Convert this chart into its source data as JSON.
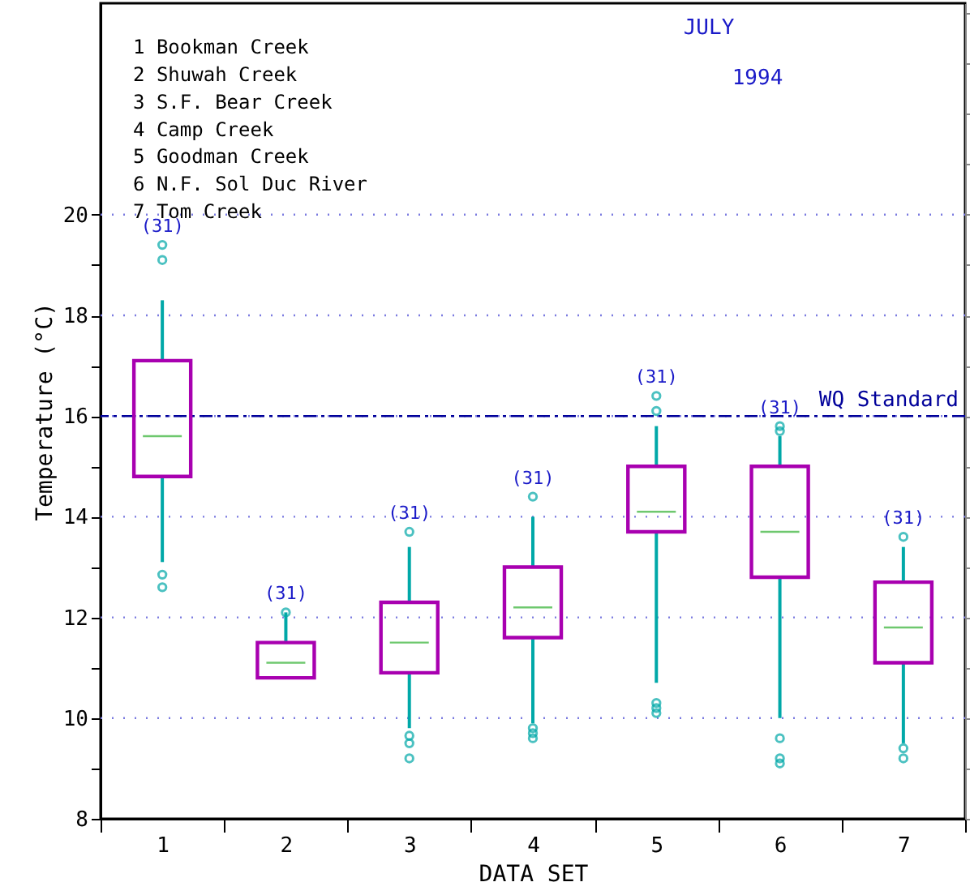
{
  "chart_data": {
    "type": "box",
    "title": "JULY",
    "subtitle": "1994",
    "xlabel": "DATA SET",
    "ylabel": "Temperature (°C)",
    "categories": [
      "1",
      "2",
      "3",
      "4",
      "5",
      "6",
      "7"
    ],
    "series": [
      {
        "boxes": [
          {
            "low": 13.1,
            "q1": 14.8,
            "median": 15.6,
            "q3": 17.1,
            "high": 18.3,
            "outliers": [
              12.85,
              12.6,
              19.1,
              19.4
            ]
          },
          {
            "low": 10.8,
            "q1": 10.8,
            "median": 11.1,
            "q3": 11.5,
            "high": 12.1,
            "outliers": [
              12.1
            ]
          },
          {
            "low": 9.8,
            "q1": 10.9,
            "median": 11.5,
            "q3": 12.3,
            "high": 13.4,
            "outliers": [
              13.7,
              9.65,
              9.5,
              9.2
            ]
          },
          {
            "low": 9.9,
            "q1": 11.6,
            "median": 12.2,
            "q3": 13.0,
            "high": 14.0,
            "outliers": [
              14.4,
              9.8,
              9.7,
              9.6
            ]
          },
          {
            "low": 10.7,
            "q1": 13.7,
            "median": 14.1,
            "q3": 15.0,
            "high": 15.8,
            "outliers": [
              16.1,
              16.4,
              10.3,
              10.2,
              10.1
            ]
          },
          {
            "low": 10.0,
            "q1": 12.8,
            "median": 13.7,
            "q3": 15.0,
            "high": 15.6,
            "outliers": [
              15.7,
              15.8,
              9.6,
              9.2,
              9.1
            ]
          },
          {
            "low": 9.5,
            "q1": 11.1,
            "median": 11.8,
            "q3": 12.7,
            "high": 13.4,
            "outliers": [
              13.6,
              9.4,
              9.2
            ]
          }
        ]
      }
    ],
    "ylim": [
      8,
      24.2
    ],
    "yticks": [
      8,
      {
        "value": 9,
        "label": null
      },
      10,
      {
        "value": 11,
        "label": null
      },
      12,
      {
        "value": 13,
        "label": null
      },
      14,
      {
        "value": 15,
        "label": null
      },
      16,
      {
        "value": 17,
        "label": null
      },
      18,
      {
        "value": 19,
        "label": null
      },
      20
    ],
    "grid": "y",
    "ref_lines": [
      {
        "axis": "y",
        "value": 16,
        "label": "WQ Standard",
        "color": "#00009a",
        "line_style": "dashdot"
      }
    ],
    "annotations": [
      "1 Bookman Creek",
      "2 Shuwah Creek",
      "3 S.F. Bear Creek",
      "4 Camp Creek",
      "5 Goodman Creek",
      "6 N.F. Sol Duc River",
      "7 Tom Creek",
      "(31)",
      "(31)",
      "(31)",
      "(31)",
      "(31)",
      "(31)",
      "(31)"
    ]
  }
}
